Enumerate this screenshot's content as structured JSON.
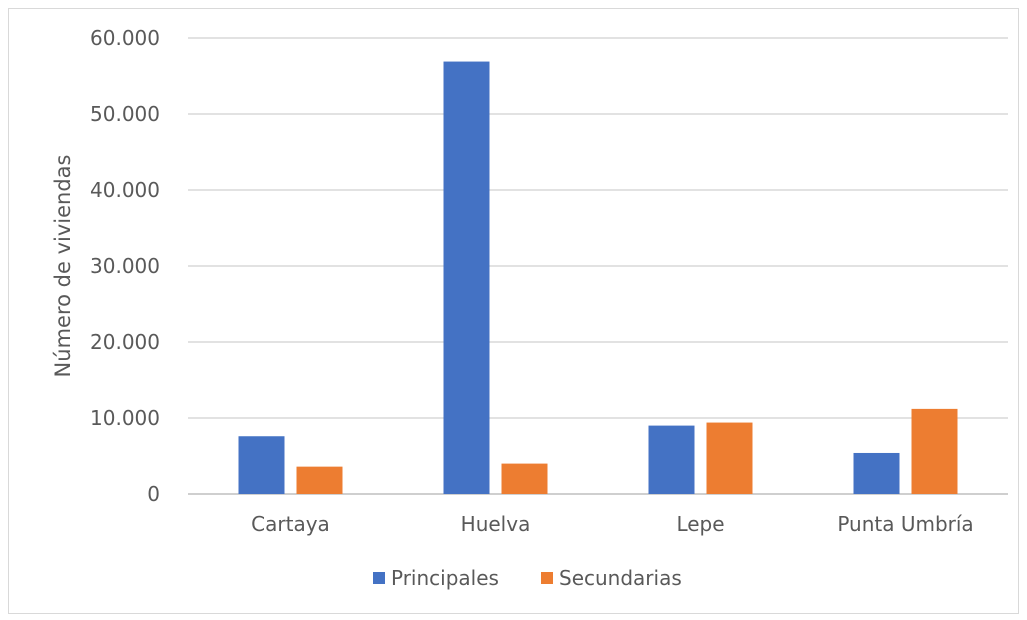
{
  "chart_data": {
    "type": "bar",
    "title": "",
    "xlabel": "",
    "ylabel": "Número de viviendas",
    "categories": [
      "Cartaya",
      "Huelva",
      "Lepe",
      "Punta Umbría"
    ],
    "series": [
      {
        "name": "Principales",
        "color": "#4472C4",
        "values": [
          7600,
          56900,
          9000,
          5400
        ]
      },
      {
        "name": "Secundarias",
        "color": "#ED7D31",
        "values": [
          3600,
          4000,
          9400,
          11200
        ]
      }
    ],
    "ylim": [
      0,
      60000
    ],
    "yticks": [
      0,
      10000,
      20000,
      30000,
      40000,
      50000,
      60000
    ],
    "ytick_labels": [
      "0",
      "10.000",
      "20.000",
      "30.000",
      "40.000",
      "50.000",
      "60.000"
    ],
    "grid": true,
    "legend_position": "bottom"
  }
}
